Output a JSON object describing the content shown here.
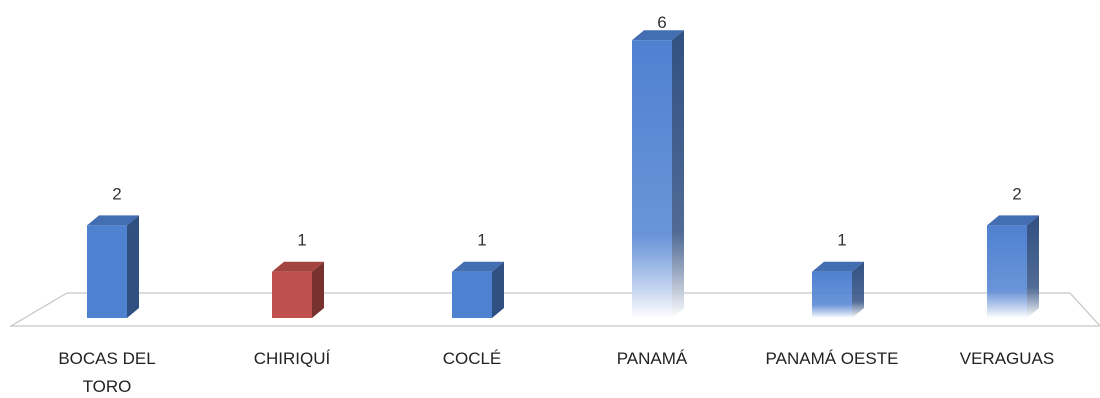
{
  "chart_data": {
    "type": "bar",
    "style": "3d-column",
    "title": "",
    "xlabel": "",
    "ylabel": "",
    "ylim": [
      0,
      6
    ],
    "grid": false,
    "legend": "none",
    "categories": [
      "BOCAS DEL TORO",
      "CHIRIQUÍ",
      "COCLÉ",
      "PANAMÁ",
      "PANAMÁ OESTE",
      "VERAGUAS"
    ],
    "category_lines": [
      [
        "BOCAS DEL",
        "TORO"
      ],
      [
        "CHIRIQUÍ"
      ],
      [
        "COCLÉ"
      ],
      [
        "PANAMÁ"
      ],
      [
        "PANAMÁ OESTE"
      ],
      [
        "VERAGUAS"
      ]
    ],
    "values": [
      2,
      1,
      1,
      6,
      1,
      2
    ],
    "value_labels": [
      "2",
      "1",
      "1",
      "6",
      "1",
      "2"
    ],
    "bar_colors": [
      "#4f81d1",
      "#c0504d",
      "#4f81d1",
      "#4f81d1",
      "#4f81d1",
      "#4f81d1"
    ],
    "gradient_fade": [
      false,
      false,
      false,
      true,
      true,
      true
    ]
  }
}
